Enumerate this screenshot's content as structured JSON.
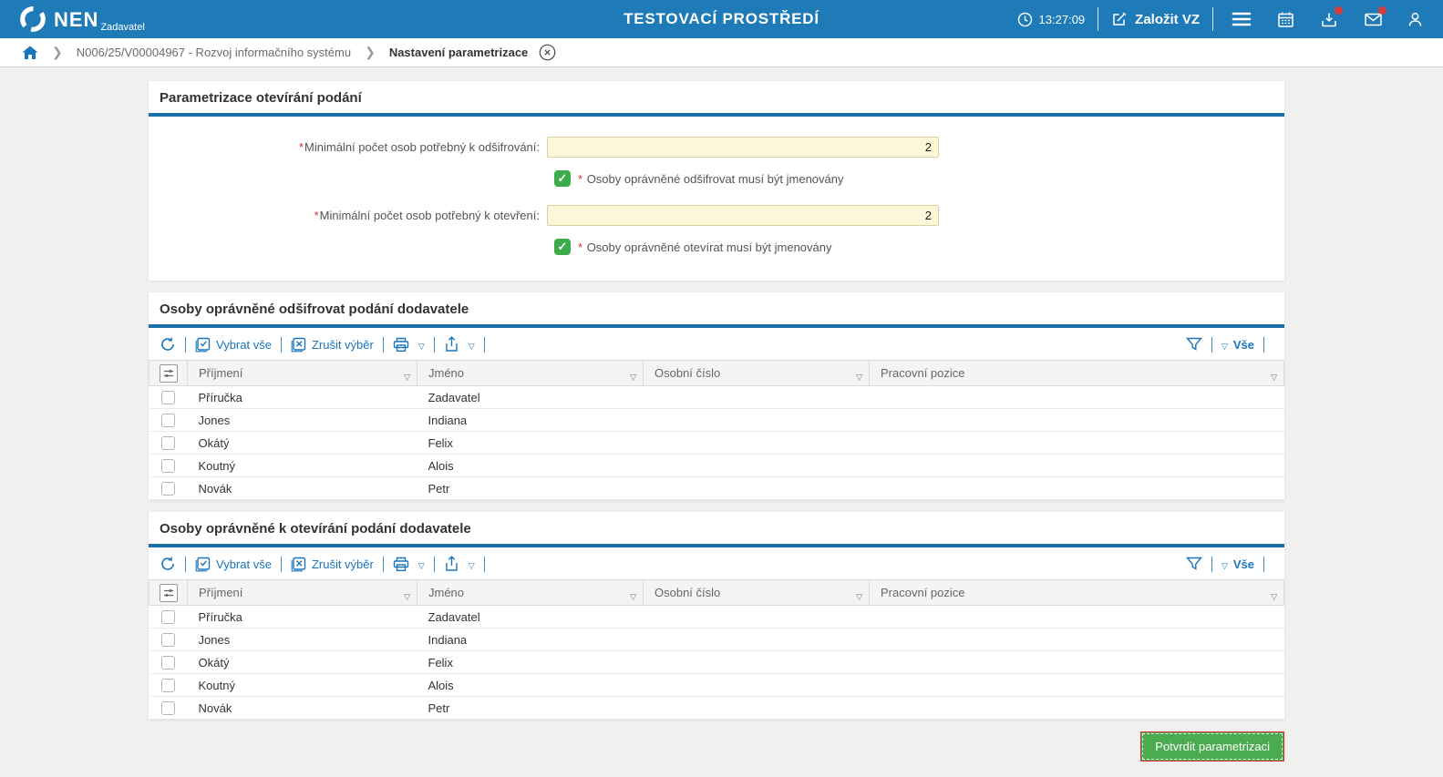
{
  "header": {
    "brand": "NEN",
    "brand_sub": "Zadavatel",
    "env_title": "TESTOVACÍ PROSTŘEDÍ",
    "time": "13:27:09",
    "create_vz_label": "Založit VZ"
  },
  "breadcrumb": {
    "crumb_1": "N006/25/V00004967 - Rozvoj informačního systému",
    "crumb_2": "Nastavení parametrizace"
  },
  "required_mark": "*",
  "params": {
    "title": "Parametrizace otevírání podání",
    "field_decrypt_label": "Minimální počet osob potřebný k odšifrování:",
    "field_decrypt_value": "2",
    "checkbox_decrypt_label": "Osoby oprávněné odšifrovat musí být jmenovány",
    "checkbox_decrypt_checked": true,
    "field_open_label": "Minimální počet osob potřebný k otevření:",
    "field_open_value": "2",
    "checkbox_open_label": "Osoby oprávněné otevírat musí být jmenovány",
    "checkbox_open_checked": true
  },
  "toolbar": {
    "select_all": "Vybrat vše",
    "clear_selection": "Zrušit výběr",
    "filter_scope": "Vše"
  },
  "columns": [
    "Příjmení",
    "Jméno",
    "Osobní číslo",
    "Pracovní pozice"
  ],
  "table_decrypt": {
    "title": "Osoby oprávněné odšifrovat podání dodavatele",
    "rows": [
      [
        "Příručka",
        "Zadavatel",
        "",
        ""
      ],
      [
        "Jones",
        "Indiana",
        "",
        ""
      ],
      [
        "Okátý",
        "Felix",
        "",
        ""
      ],
      [
        "Koutný",
        "Alois",
        "",
        ""
      ],
      [
        "Novák",
        "Petr",
        "",
        ""
      ]
    ]
  },
  "table_open": {
    "title": "Osoby oprávněné k otevírání podání dodavatele",
    "rows": [
      [
        "Příručka",
        "Zadavatel",
        "",
        ""
      ],
      [
        "Jones",
        "Indiana",
        "",
        ""
      ],
      [
        "Okátý",
        "Felix",
        "",
        ""
      ],
      [
        "Koutný",
        "Alois",
        "",
        ""
      ],
      [
        "Novák",
        "Petr",
        "",
        ""
      ]
    ]
  },
  "footer": {
    "confirm_label": "Potvrdit parametrizaci"
  },
  "colors": {
    "header_blue": "#1e7bb8",
    "accent_blue": "#1b75bb",
    "section_rule_blue": "#1b6fa8",
    "input_yellow": "#fcf7d8",
    "checkbox_green": "#3cab4a",
    "button_green": "#4aab51",
    "badge_red": "#d63b3b",
    "required_red": "#d32f2f"
  }
}
